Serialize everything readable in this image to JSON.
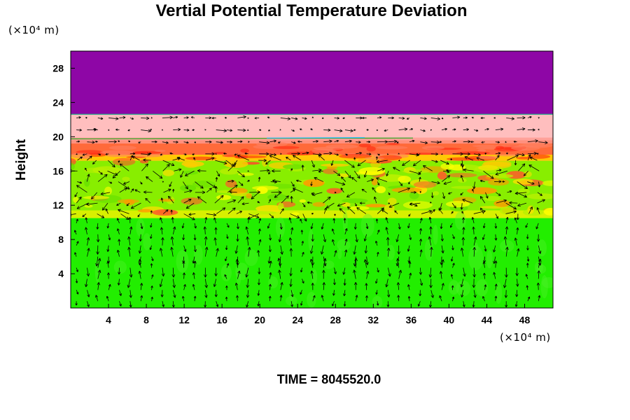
{
  "chart_data": {
    "type": "heatmap",
    "title": "Vertial Potential Temperature Deviation",
    "ylabel": "Height",
    "xlabel": "",
    "x_unit": "(×10⁴ m)",
    "y_unit": "(×10⁴ m)",
    "xlim": [
      0,
      51
    ],
    "ylim": [
      0,
      30
    ],
    "x_ticks": [
      4,
      8,
      12,
      16,
      20,
      24,
      28,
      32,
      36,
      40,
      44,
      48
    ],
    "y_ticks": [
      4,
      8,
      12,
      16,
      20,
      24,
      28
    ],
    "layers": [
      {
        "from": 0,
        "to": 10.5,
        "color": "#22ee00"
      },
      {
        "from": 10.5,
        "to": 17.2,
        "color": "#88ee00"
      },
      {
        "from": 17.2,
        "to": 19.6,
        "color": "#ff6a3a"
      },
      {
        "from": 19.6,
        "to": 22.6,
        "color": "#ffbebe"
      },
      {
        "from": 22.6,
        "to": 30,
        "color": "#8e06a6"
      }
    ],
    "overlay": "velocity vectors",
    "colors": {
      "purple": "#8e06a6",
      "pink": "#ffbebe",
      "red": "#ff3300",
      "yellow": "#ffff00",
      "green": "#22ee00"
    }
  },
  "time_text": "TIME = 8045520.0"
}
